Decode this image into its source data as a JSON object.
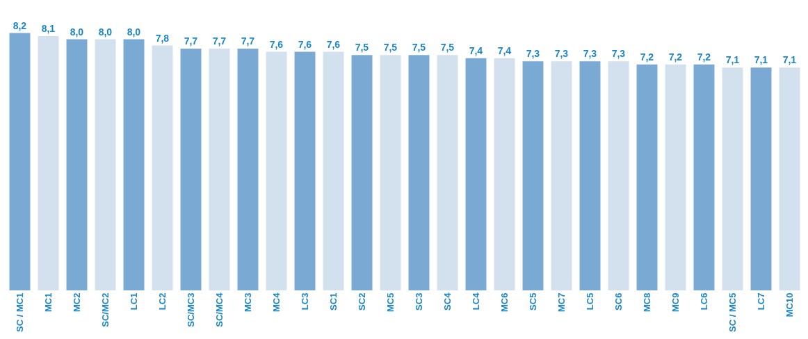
{
  "chart_data": {
    "type": "bar",
    "categories": [
      "SC / MC1",
      "MC1",
      "MC2",
      "SC/MC2",
      "LC1",
      "LC2",
      "SC/MC3",
      "SC/MC4",
      "MC3",
      "MC4",
      "LC3",
      "SC1",
      "SC2",
      "MC5",
      "SC3",
      "SC4",
      "LC4",
      "MC6",
      "SC5",
      "MC7",
      "LC5",
      "SC6",
      "MC8",
      "MC9",
      "LC6",
      "SC / MC5",
      "LC7",
      "MC10"
    ],
    "values": [
      8.2,
      8.1,
      8.0,
      8.0,
      8.0,
      7.8,
      7.7,
      7.7,
      7.7,
      7.6,
      7.6,
      7.6,
      7.5,
      7.5,
      7.5,
      7.5,
      7.4,
      7.4,
      7.3,
      7.3,
      7.3,
      7.3,
      7.2,
      7.2,
      7.2,
      7.1,
      7.1,
      7.1
    ],
    "value_labels": [
      "8,2",
      "8,1",
      "8,0",
      "8,0",
      "8,0",
      "7,8",
      "7,7",
      "7,7",
      "7,7",
      "7,6",
      "7,6",
      "7,6",
      "7,5",
      "7,5",
      "7,5",
      "7,5",
      "7,4",
      "7,4",
      "7,3",
      "7,3",
      "7,3",
      "7,3",
      "7,2",
      "7,2",
      "7,2",
      "7,1",
      "7,1",
      "7,1"
    ],
    "colors": [
      "#7aaad3",
      "#d3e0ed",
      "#7aaad3",
      "#d3e0ed",
      "#7aaad3",
      "#d3e0ed",
      "#7aaad3",
      "#d3e0ed",
      "#7aaad3",
      "#d3e0ed",
      "#7aaad3",
      "#d3e0ed",
      "#7aaad3",
      "#d3e0ed",
      "#7aaad3",
      "#d3e0ed",
      "#7aaad3",
      "#d3e0ed",
      "#7aaad3",
      "#d3e0ed",
      "#7aaad3",
      "#d3e0ed",
      "#7aaad3",
      "#d3e0ed",
      "#7aaad3",
      "#d3e0ed",
      "#7aaad3",
      "#d3e0ed"
    ]
  }
}
